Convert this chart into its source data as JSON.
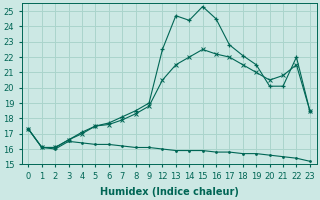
{
  "xlabel": "Humidex (Indice chaleur)",
  "background_color": "#cce8e4",
  "grid_color": "#aad4cc",
  "line_color": "#006655",
  "ylim": [
    15,
    25.5
  ],
  "xlim": [
    -0.5,
    21.5
  ],
  "yticks": [
    15,
    16,
    17,
    18,
    19,
    20,
    21,
    22,
    23,
    24,
    25
  ],
  "xtick_positions": [
    0,
    1,
    2,
    3,
    4,
    5,
    6,
    7,
    8,
    9,
    10,
    11,
    12,
    13,
    14,
    15,
    16,
    17,
    18,
    19,
    20,
    21
  ],
  "xtick_labels": [
    "0",
    "1",
    "2",
    "3",
    "4",
    "5",
    "6",
    "7",
    "8",
    "9",
    "12",
    "13",
    "14",
    "15",
    "16",
    "17",
    "18",
    "19",
    "20",
    "21",
    "22",
    "23"
  ],
  "line1_x": [
    0,
    1,
    2,
    3,
    4,
    5,
    6,
    7,
    8,
    9,
    10,
    11,
    12,
    13,
    14,
    15,
    16,
    17,
    18,
    19,
    20,
    21
  ],
  "line1_y": [
    17.3,
    16.1,
    16.1,
    16.6,
    17.1,
    17.5,
    17.7,
    18.1,
    18.5,
    19.0,
    22.5,
    24.7,
    24.4,
    25.3,
    24.5,
    22.8,
    22.1,
    21.5,
    20.1,
    20.1,
    22.0,
    18.5
  ],
  "line2_x": [
    0,
    1,
    2,
    3,
    4,
    5,
    6,
    7,
    8,
    9,
    10,
    11,
    12,
    13,
    14,
    15,
    16,
    17,
    18,
    19,
    20,
    21
  ],
  "line2_y": [
    17.3,
    16.1,
    16.1,
    16.6,
    17.0,
    17.5,
    17.6,
    17.9,
    18.3,
    18.8,
    20.5,
    21.5,
    22.0,
    22.5,
    22.2,
    22.0,
    21.5,
    21.0,
    20.5,
    20.8,
    21.5,
    18.5
  ],
  "line3_x": [
    0,
    1,
    2,
    3,
    4,
    5,
    6,
    7,
    8,
    9,
    10,
    11,
    12,
    13,
    14,
    15,
    16,
    17,
    18,
    19,
    20,
    21
  ],
  "line3_y": [
    17.3,
    16.1,
    16.0,
    16.5,
    16.4,
    16.3,
    16.3,
    16.2,
    16.1,
    16.1,
    16.0,
    15.9,
    15.9,
    15.9,
    15.8,
    15.8,
    15.7,
    15.7,
    15.6,
    15.5,
    15.4,
    15.2
  ],
  "line1_marker_x": [
    0,
    1,
    2,
    3,
    4,
    5,
    6,
    7,
    8,
    9,
    10,
    11,
    12,
    13,
    14,
    15,
    16,
    17,
    18,
    19,
    20,
    21
  ],
  "line2_marker_x": [
    0,
    1,
    2,
    3,
    4,
    5,
    6,
    7,
    8,
    9,
    10,
    11,
    12,
    13,
    14,
    15,
    16,
    17,
    18,
    19,
    20,
    21
  ],
  "line3_marker_x": [
    0,
    1,
    2,
    3,
    4,
    5,
    6,
    7,
    8,
    9,
    10,
    11,
    12,
    13,
    14,
    15,
    16,
    17,
    18,
    19,
    20,
    21
  ]
}
